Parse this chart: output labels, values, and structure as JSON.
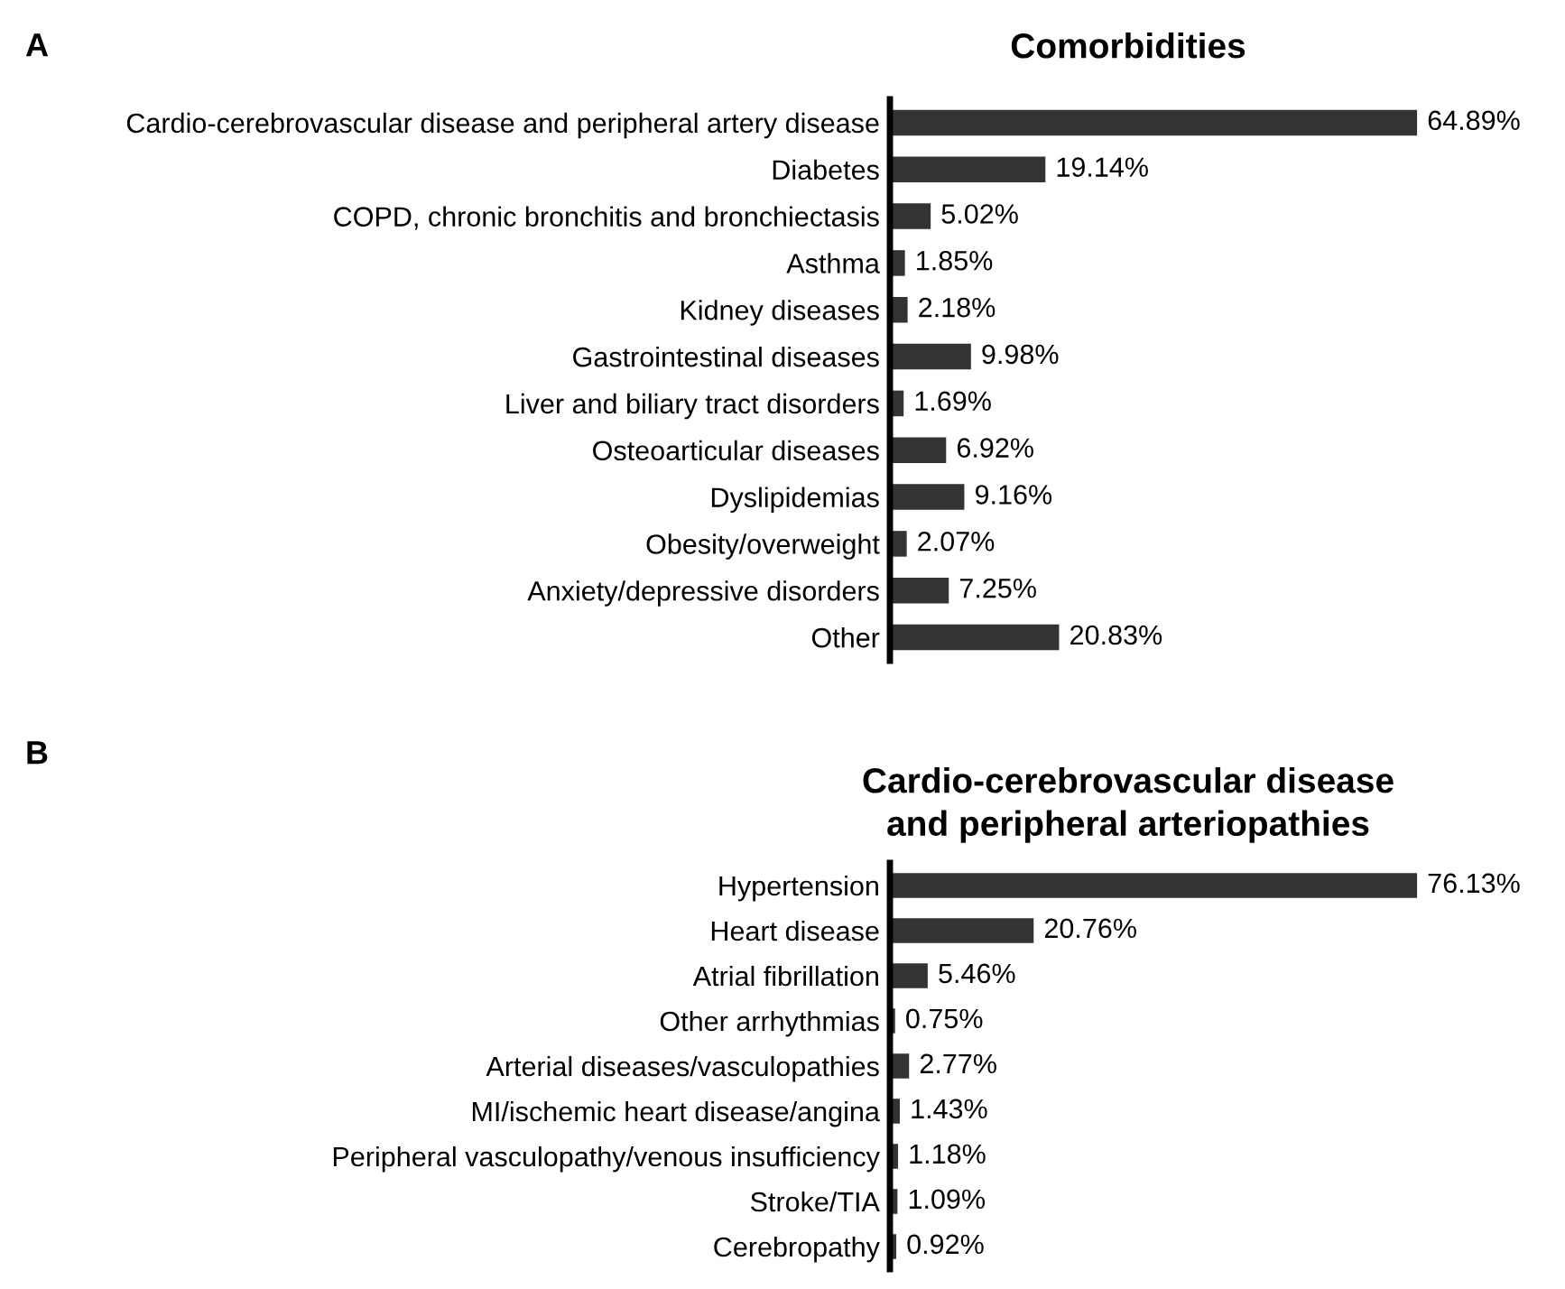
{
  "chart_data": [
    {
      "type": "bar",
      "orientation": "horizontal",
      "title": "Comorbidities",
      "annotations": [
        "A"
      ],
      "categories": [
        "Cardio-cerebrovascular disease and peripheral artery disease",
        "Diabetes",
        "COPD, chronic bronchitis and bronchiectasis",
        "Asthma",
        "Kidney diseases",
        "Gastrointestinal diseases",
        "Liver and biliary tract disorders",
        "Osteoarticular diseases",
        "Dyslipidemias",
        "Obesity/overweight",
        "Anxiety/depressive disorders",
        "Other"
      ],
      "values": [
        64.89,
        19.14,
        5.02,
        1.85,
        2.18,
        9.98,
        1.69,
        6.92,
        9.16,
        2.07,
        7.25,
        20.83
      ],
      "value_labels": [
        "64.89%",
        "19.14%",
        "5.02%",
        "1.85%",
        "2.18%",
        "9.98%",
        "1.69%",
        "6.92%",
        "9.16%",
        "2.07%",
        "7.25%",
        "20.83%"
      ],
      "color": "#333333",
      "grid": false,
      "legend": false
    },
    {
      "type": "bar",
      "orientation": "horizontal",
      "title": "Cardio-cerebrovascular disease\nand peripheral arteriopathies",
      "annotations": [
        "B"
      ],
      "categories": [
        "Hypertension",
        "Heart disease",
        "Atrial fibrillation",
        "Other arrhythmias",
        "Arterial diseases/vasculopathies",
        "MI/ischemic heart disease/angina",
        "Peripheral vasculopathy/venous insufficiency",
        "Stroke/TIA",
        "Cerebropathy"
      ],
      "values": [
        76.13,
        20.76,
        5.46,
        0.75,
        2.77,
        1.43,
        1.18,
        1.09,
        0.92
      ],
      "value_labels": [
        "76.13%",
        "20.76%",
        "5.46%",
        "0.75%",
        "2.77%",
        "1.43%",
        "1.18%",
        "1.09%",
        "0.92%"
      ],
      "color": "#333333",
      "grid": false,
      "legend": false
    }
  ]
}
